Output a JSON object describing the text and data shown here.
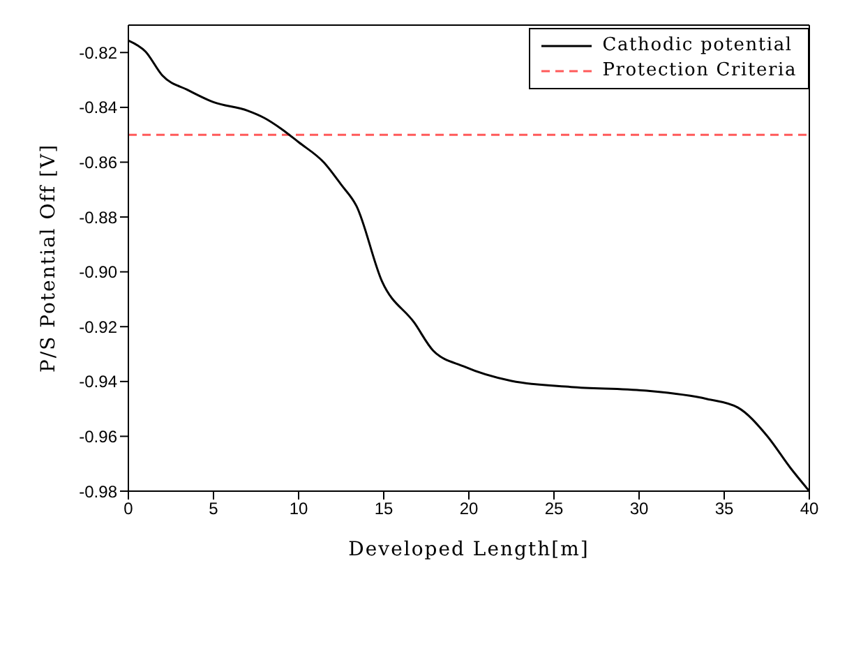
{
  "chart_data": {
    "type": "line",
    "xlabel": "Developed Length[m]",
    "ylabel": "P/S Potential Off [V]",
    "series": [
      {
        "name": "Cathodic potential",
        "color": "#000000",
        "x": [
          0,
          1,
          2,
          3.5,
          5,
          7,
          8,
          9,
          10,
          11.5,
          12.5,
          13.4,
          14.9,
          16.8,
          17.9,
          19.7,
          22.5,
          26,
          30.3,
          34,
          35.8,
          37.5,
          38.9,
          40
        ],
        "values": [
          -0.8156,
          -0.8196,
          -0.8284,
          -0.8337,
          -0.8381,
          -0.8412,
          -0.8439,
          -0.8479,
          -0.8527,
          -0.8602,
          -0.8682,
          -0.876,
          -0.9035,
          -0.9186,
          -0.9287,
          -0.9345,
          -0.9398,
          -0.942,
          -0.9433,
          -0.9464,
          -0.9495,
          -0.9597,
          -0.9716,
          -0.98
        ]
      }
    ],
    "ref_lines": [
      {
        "axis": "y",
        "value": -0.85,
        "label": "Protection Criteria",
        "color": "#ff5a5a",
        "line_style": "dashed"
      }
    ],
    "xlim": [
      0,
      40
    ],
    "xticks": [
      0,
      5,
      10,
      15,
      20,
      25,
      30,
      35,
      40
    ],
    "ylim": [
      -0.98,
      -0.81
    ],
    "yticks": [
      -0.98,
      -0.96,
      -0.94,
      -0.92,
      {
        "value": -0.9,
        "label": "-0.90"
      },
      -0.88,
      -0.86,
      -0.84,
      -0.82
    ],
    "grid": false,
    "legend": "top right",
    "marker": "none",
    "line_style": "solid"
  }
}
